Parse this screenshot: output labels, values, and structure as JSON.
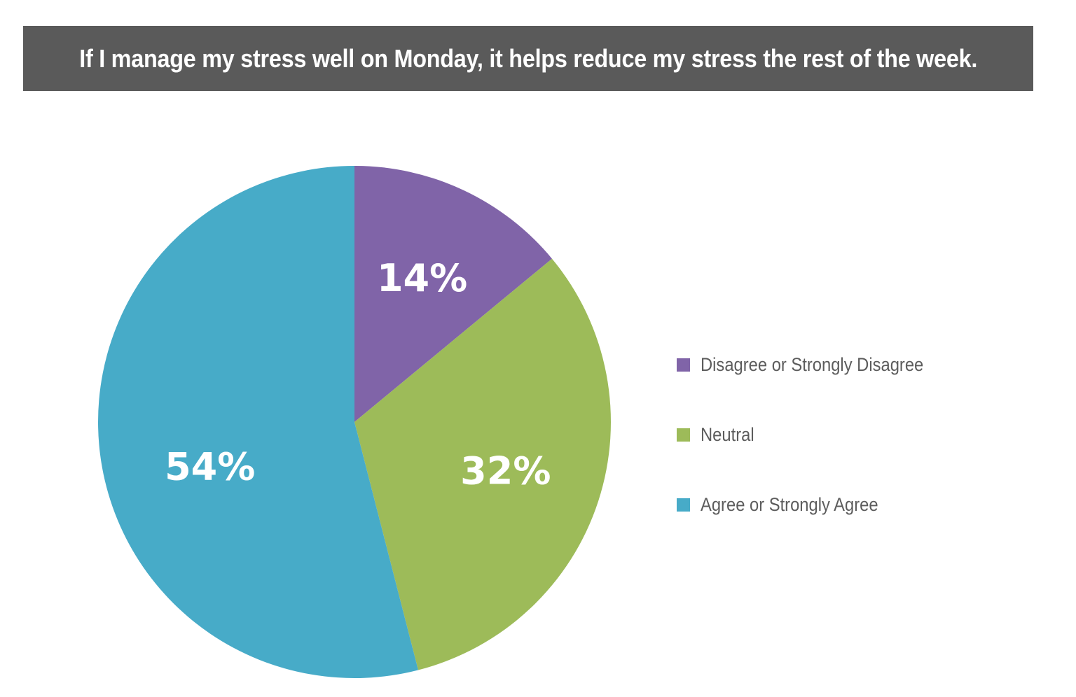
{
  "title": "If I manage my stress well on Monday, it helps reduce my stress the rest of the week.",
  "chart_data": {
    "type": "pie",
    "title": "If I manage my stress well on Monday, it helps reduce my stress the rest of the week.",
    "slices": [
      {
        "label": "Disagree or Strongly Disagree",
        "value": 14,
        "display": "14%",
        "color": "#8064a8"
      },
      {
        "label": "Neutral",
        "value": 32,
        "display": "32%",
        "color": "#9dbb59"
      },
      {
        "label": "Agree or Strongly Agree",
        "value": 54,
        "display": "54%",
        "color": "#47abc8"
      }
    ],
    "legend_position": "right"
  }
}
